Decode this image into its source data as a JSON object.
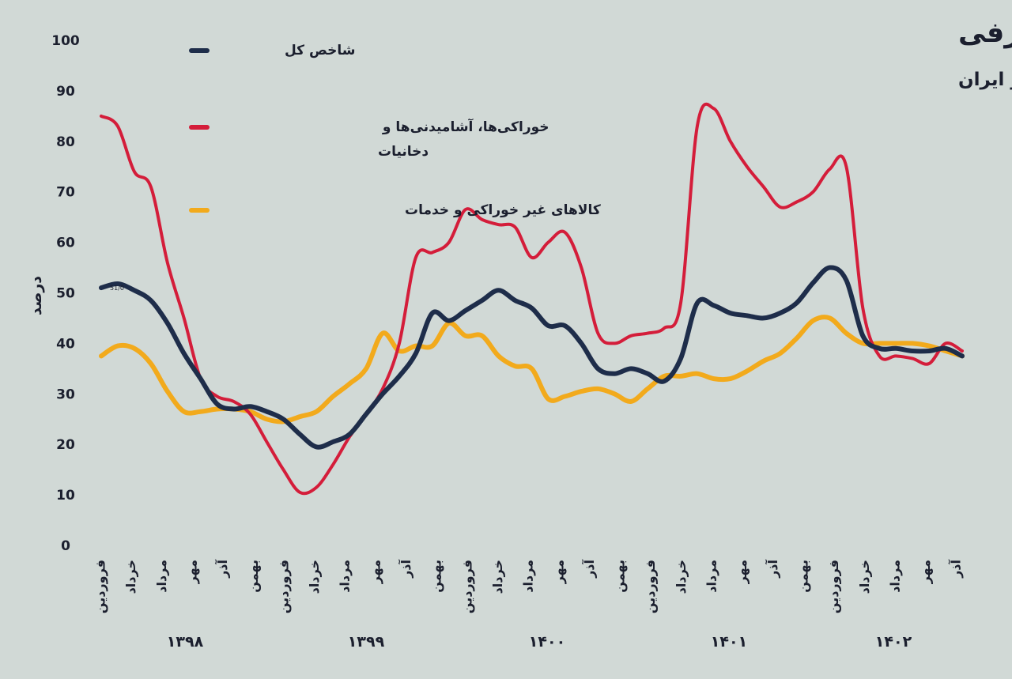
{
  "chart_data": {
    "type": "line",
    "title": "افت تورم هر دو بخش اصلی سبد مصرفی",
    "subtitle": "رشد نقطه به نقطه شاخص قیمت‌های مرکز آمار ایران",
    "ylabel": "درصد",
    "ylim": [
      0,
      100
    ],
    "yticks": [
      "100",
      "90",
      "80",
      "70",
      "60",
      "50",
      "40",
      "30",
      "20",
      "10",
      "0"
    ],
    "xtick_labels": [
      "فروردین",
      "خرداد",
      "مرداد",
      "مهر",
      "آذر",
      "بهمن",
      "فروردین",
      "خرداد",
      "مرداد",
      "مهر",
      "آذر",
      "بهمن",
      "فروردین",
      "خرداد",
      "مرداد",
      "مهر",
      "آذر",
      "بهمن",
      "فروردین",
      "خرداد",
      "مرداد",
      "مهر",
      "آذر",
      "بهمن",
      "فروردین",
      "خرداد",
      "مرداد",
      "مهر",
      "آذر"
    ],
    "years": [
      "۱۳۹۸",
      "۱۳۹۹",
      "۱۴۰۰",
      "۱۴۰۱",
      "۱۴۰۲"
    ],
    "first_point_label": "51/0",
    "grid": false,
    "legend_position": "top-center",
    "series": [
      {
        "name": "شاخص کل",
        "color": "#1e2d4a",
        "values": [
          51.0,
          51.8,
          50.5,
          48.5,
          44.0,
          38.0,
          33.0,
          28.0,
          27.0,
          27.5,
          26.5,
          25.0,
          22.0,
          19.5,
          20.5,
          22.0,
          26.0,
          30.0,
          33.5,
          38.0,
          46.0,
          44.5,
          46.5,
          48.5,
          50.5,
          48.5,
          47.0,
          43.5,
          43.5,
          40.0,
          35.0,
          34.0,
          35.0,
          34.0,
          32.5,
          37.0,
          48.0,
          47.5,
          46.0,
          45.5,
          45.0,
          46.0,
          48.0,
          52.0,
          55.0,
          52.5,
          41.5,
          39.0,
          39.0,
          38.5,
          38.5,
          39.0,
          37.5
        ]
      },
      {
        "name": "خوراکی‌ها، آشامیدنی‌ها و دخانیات",
        "color": "#d41d3a",
        "values": [
          85.0,
          83.0,
          74.0,
          71.0,
          56.0,
          45.0,
          33.0,
          29.5,
          28.5,
          26.0,
          20.5,
          15.0,
          10.5,
          11.5,
          16.0,
          21.5,
          26.0,
          31.0,
          40.0,
          57.0,
          58.0,
          60.0,
          66.5,
          64.5,
          63.5,
          63.0,
          57.0,
          60.0,
          62.0,
          55.0,
          42.0,
          40.0,
          41.5,
          42.0,
          43.0,
          48.0,
          83.0,
          86.5,
          80.0,
          75.0,
          71.0,
          67.0,
          68.0,
          70.0,
          74.5,
          75.0,
          47.0,
          37.5,
          37.5,
          37.0,
          36.0,
          40.0,
          38.5
        ]
      },
      {
        "name": "کالاهای غیر خوراکی و خدمات",
        "color": "#f2aa1c",
        "values": [
          37.5,
          39.5,
          39.0,
          36.0,
          30.5,
          26.5,
          26.5,
          27.0,
          27.0,
          26.5,
          25.0,
          24.5,
          25.5,
          26.5,
          29.5,
          32.0,
          35.0,
          42.0,
          38.5,
          39.5,
          39.5,
          44.0,
          41.5,
          41.5,
          37.5,
          35.5,
          35.0,
          29.0,
          29.5,
          30.5,
          31.0,
          30.0,
          28.5,
          31.0,
          33.5,
          33.5,
          34.0,
          33.0,
          33.0,
          34.5,
          36.5,
          38.0,
          41.0,
          44.5,
          45.0,
          42.0,
          40.0,
          40.0,
          40.0,
          40.0,
          39.5,
          38.5,
          37.5
        ]
      }
    ]
  }
}
